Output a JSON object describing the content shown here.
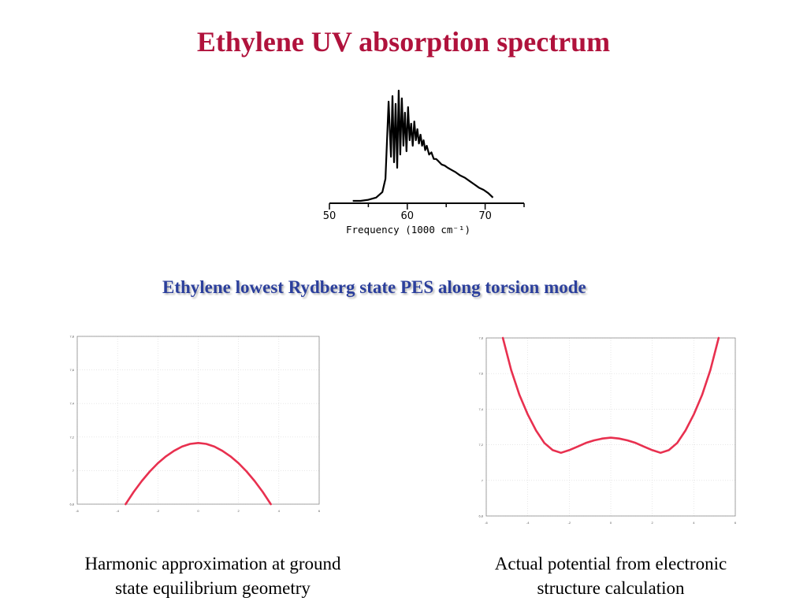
{
  "slide": {
    "title": "Ethylene UV absorption spectrum",
    "subtitle": "Ethylene lowest Rydberg state PES along torsion mode",
    "caption_left": [
      "Harmonic approximation at ground",
      "state equilibrium geometry"
    ],
    "caption_right": [
      "Actual potential from electronic",
      "structure calculation"
    ]
  },
  "chart_data": [
    {
      "type": "line",
      "xlabel": "Frequency (1000 cm⁻¹)",
      "xticks": [
        "50",
        "60",
        "70"
      ],
      "xlim": [
        50,
        75
      ],
      "line_color": "#000000",
      "grid": false,
      "series": [
        {
          "x": [
            54.0,
            55.0,
            56.0,
            56.8,
            57.2,
            57.6,
            57.9,
            58.1,
            58.3,
            58.5,
            58.7,
            58.9,
            59.1,
            59.3,
            59.5,
            59.7,
            59.9,
            60.1,
            60.3,
            60.5,
            60.7,
            60.9,
            61.1,
            61.3,
            61.5,
            61.7,
            61.9,
            62.1,
            62.3,
            62.5,
            62.8,
            63.1,
            63.4,
            63.7,
            64.0,
            64.4,
            64.8,
            65.2,
            65.7,
            66.2,
            66.8,
            67.4,
            68.0,
            68.6,
            69.2,
            69.8,
            70.4,
            71.0
          ],
          "y": [
            0.0,
            0.01,
            0.03,
            0.08,
            0.2,
            0.9,
            0.4,
            0.95,
            0.35,
            0.88,
            0.3,
            1.0,
            0.42,
            0.93,
            0.5,
            0.8,
            0.45,
            0.85,
            0.55,
            0.7,
            0.5,
            0.72,
            0.55,
            0.65,
            0.52,
            0.6,
            0.5,
            0.55,
            0.46,
            0.5,
            0.42,
            0.44,
            0.38,
            0.38,
            0.36,
            0.33,
            0.32,
            0.3,
            0.28,
            0.26,
            0.23,
            0.21,
            0.18,
            0.15,
            0.12,
            0.1,
            0.07,
            0.03
          ]
        }
      ]
    },
    {
      "type": "line",
      "xlim": [
        -6,
        6
      ],
      "ylim": [
        6.8,
        7.8
      ],
      "xticks": [
        "-6",
        "-4",
        "-2",
        "0",
        "2",
        "4",
        "6"
      ],
      "yticks": [
        "6,8",
        "7",
        "7,2",
        "7,4",
        "7,6",
        "7,8"
      ],
      "line_color": "#e8304f",
      "grid": true,
      "series": [
        {
          "x": [
            -3.6,
            -3.2,
            -2.8,
            -2.4,
            -2.0,
            -1.6,
            -1.2,
            -0.8,
            -0.4,
            0.0,
            0.4,
            0.8,
            1.2,
            1.6,
            2.0,
            2.4,
            2.8,
            3.2,
            3.6
          ],
          "y": [
            6.8,
            6.873,
            6.938,
            6.995,
            7.044,
            7.085,
            7.118,
            7.143,
            7.159,
            7.165,
            7.159,
            7.143,
            7.118,
            7.085,
            7.044,
            6.995,
            6.938,
            6.873,
            6.8
          ]
        }
      ]
    },
    {
      "type": "line",
      "xlim": [
        -6,
        6
      ],
      "ylim": [
        6.8,
        7.8
      ],
      "xticks": [
        "-6",
        "-4",
        "-2",
        "0",
        "2",
        "4",
        "6"
      ],
      "yticks": [
        "6,8",
        "7",
        "7,2",
        "7,4",
        "7,6",
        "7,8"
      ],
      "line_color": "#e8304f",
      "grid": true,
      "series": [
        {
          "x": [
            -5.2,
            -4.8,
            -4.4,
            -4.0,
            -3.6,
            -3.2,
            -2.8,
            -2.4,
            -2.0,
            -1.6,
            -1.2,
            -0.8,
            -0.4,
            0.0,
            0.4,
            0.8,
            1.2,
            1.6,
            2.0,
            2.4,
            2.8,
            3.2,
            3.6,
            4.0,
            4.4,
            4.8,
            5.2
          ],
          "y": [
            7.8,
            7.62,
            7.48,
            7.37,
            7.28,
            7.21,
            7.17,
            7.155,
            7.17,
            7.19,
            7.21,
            7.225,
            7.235,
            7.24,
            7.235,
            7.225,
            7.21,
            7.19,
            7.17,
            7.155,
            7.17,
            7.21,
            7.28,
            7.37,
            7.48,
            7.62,
            7.8
          ]
        }
      ]
    }
  ]
}
